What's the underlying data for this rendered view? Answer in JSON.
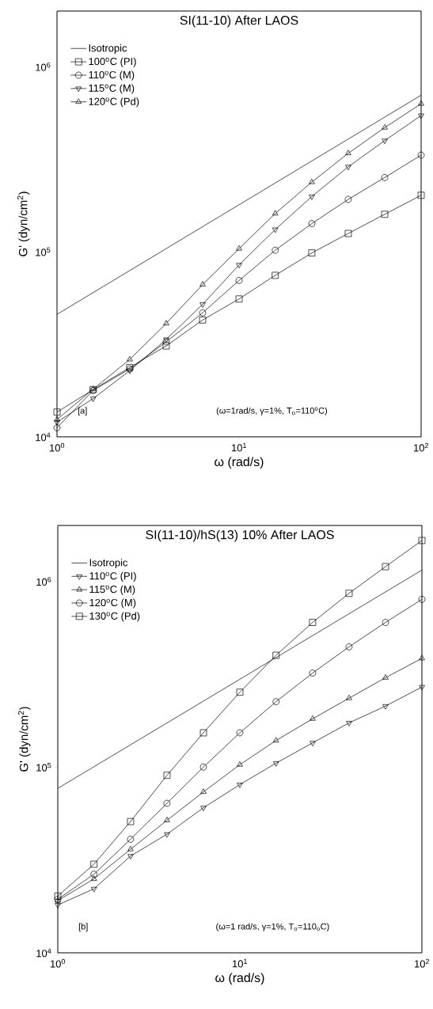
{
  "chart_data": [
    {
      "type": "line",
      "title": "SI(11-10) After LAOS",
      "xlabel": "ω (rad/s)",
      "ylabel": "G' (dyn/cm$^{2}$)",
      "log": "xy",
      "legend": "top left",
      "grid": false,
      "line_style": "solid",
      "xlim": [
        1,
        100
      ],
      "ylim": [
        10000,
        2000000
      ],
      "xticks": [
        {
          "value": 1,
          "label": "10$^{0}$"
        },
        {
          "value": 10,
          "label": "10$^{1}$"
        },
        {
          "value": 100,
          "label": "10$^{2}$"
        }
      ],
      "yticks": [
        {
          "value": 10000,
          "label": "10$^{4}$"
        },
        {
          "value": 100000,
          "label": "10$^{5}$"
        },
        {
          "value": 1000000,
          "label": "10$^{6}$"
        }
      ],
      "annotations": [
        "[a]",
        "(ω=1rad/s,  γ=1%,  T$_{o}$=110$^{o}$C)"
      ],
      "series": [
        {
          "name": "Isotropic",
          "color": "#000000",
          "marker": "none",
          "x": [
            1,
            100
          ],
          "values": [
            45900,
            702000
          ]
        },
        {
          "name": "100$^{o}$C (PI)",
          "color": "#000000",
          "marker": "square",
          "x": [
            1,
            1.58,
            2.51,
            3.98,
            6.31,
            10,
            15.8,
            25.1,
            39.8,
            63.1,
            100
          ],
          "values": [
            13600,
            18000,
            23700,
            31000,
            42800,
            55600,
            74600,
            98600,
            125600,
            159500,
            202000
          ]
        },
        {
          "name": "110$^{o}$C (M)",
          "color": "#000000",
          "marker": "circle",
          "x": [
            1,
            1.58,
            2.51,
            3.98,
            6.31,
            10,
            15.8,
            25.1,
            39.8,
            63.1,
            100
          ],
          "values": [
            11200,
            17800,
            23300,
            32600,
            46800,
            70000,
            102000,
            142000,
            192000,
            252000,
            333000
          ]
        },
        {
          "name": "115$^{o}$C (M)",
          "color": "#000000",
          "marker": "triangle_down",
          "x": [
            1,
            1.58,
            2.51,
            3.98,
            6.31,
            10,
            15.8,
            25.1,
            39.8,
            63.1,
            100
          ],
          "values": [
            12000,
            16100,
            22800,
            33600,
            52000,
            84900,
            132000,
            199000,
            288000,
            399000,
            545000
          ]
        },
        {
          "name": "120$^{o}$C (Pd)",
          "color": "#000000",
          "marker": "triangle",
          "x": [
            1,
            1.58,
            2.51,
            3.98,
            6.31,
            10,
            15.8,
            25.1,
            39.8,
            63.1,
            100
          ],
          "values": [
            12400,
            18100,
            26200,
            41000,
            66500,
            104000,
            161000,
            238000,
            341000,
            469000,
            631000
          ]
        }
      ]
    },
    {
      "type": "line",
      "title": "SI(11-10)/hS(13) 10% After LAOS",
      "xlabel": "ω (rad/s)",
      "ylabel": "G' (dyn/cm$^{2}$)",
      "log": "xy",
      "legend": "top left",
      "grid": false,
      "line_style": "solid",
      "xlim": [
        1,
        100
      ],
      "ylim": [
        10000,
        2000000
      ],
      "xticks": [
        {
          "value": 1,
          "label": "10$^{0}$"
        },
        {
          "value": 10,
          "label": "10$^{1}$"
        },
        {
          "value": 100,
          "label": "10$^{2}$"
        }
      ],
      "yticks": [
        {
          "value": 10000,
          "label": "10$^{4}$"
        },
        {
          "value": 100000,
          "label": "10$^{5}$"
        },
        {
          "value": 1000000,
          "label": "10$^{6}$"
        }
      ],
      "annotations": [
        "[b]",
        "(ω=1 rad/s, γ=1%, T$_{o}$=110$_{o}$C)"
      ],
      "series": [
        {
          "name": "Isotropic",
          "color": "#000000",
          "marker": "none",
          "x": [
            1,
            100
          ],
          "values": [
            76800,
            1150000
          ]
        },
        {
          "name": "110$^{o}$C (PI)",
          "color": "#000000",
          "marker": "triangle_down",
          "x": [
            1,
            1.58,
            2.51,
            3.98,
            6.31,
            10,
            15.8,
            25.1,
            39.8,
            63.1,
            100
          ],
          "values": [
            18100,
            22100,
            33200,
            43500,
            60400,
            80500,
            105000,
            135000,
            173000,
            213000,
            270000
          ]
        },
        {
          "name": "115$^{o}$C (M)",
          "color": "#000000",
          "marker": "triangle",
          "x": [
            1,
            1.58,
            2.51,
            3.98,
            6.31,
            10,
            15.8,
            25.1,
            39.8,
            63.1,
            100
          ],
          "values": [
            19100,
            25000,
            36100,
            51700,
            73500,
            103000,
            139000,
            182000,
            235000,
            303000,
            385000
          ]
        },
        {
          "name": "120$^{o}$C (M)",
          "color": "#000000",
          "marker": "circle",
          "x": [
            1,
            1.58,
            2.51,
            3.98,
            6.31,
            10,
            15.8,
            25.1,
            39.8,
            63.1,
            100
          ],
          "values": [
            19400,
            26500,
            40900,
            63800,
            100000,
            153000,
            225000,
            321000,
            444000,
            601000,
            800000
          ]
        },
        {
          "name": "130$^{o}$C (Pd)",
          "color": "#000000",
          "marker": "square",
          "x": [
            1,
            1.58,
            2.51,
            3.98,
            6.31,
            10,
            15.8,
            25.1,
            39.8,
            63.1,
            100
          ],
          "values": [
            20200,
            30000,
            50900,
            90300,
            153000,
            253000,
            400000,
            601000,
            862000,
            1200000,
            1660000
          ]
        }
      ]
    }
  ]
}
